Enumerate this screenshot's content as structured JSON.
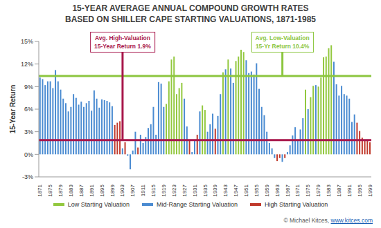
{
  "chart_data": {
    "type": "bar",
    "title": "15-YEAR AVERAGE ANNUAL COMPOUND GROWTH RATES",
    "subtitle": "BASED ON SHILLER CAPE STARTING VALUATIONS, 1871-1985",
    "y_label": "15-Year Return",
    "categories": [
      "1871",
      null,
      null,
      null,
      "1875",
      null,
      null,
      null,
      "1879",
      null,
      null,
      null,
      "1883",
      null,
      null,
      null,
      "1887",
      null,
      null,
      null,
      "1891",
      null,
      null,
      null,
      "1895",
      null,
      null,
      null,
      "1899",
      null,
      null,
      null,
      "1903",
      null,
      null,
      null,
      "1907",
      null,
      null,
      null,
      "1911",
      null,
      null,
      null,
      "1915",
      null,
      null,
      null,
      "1919",
      null,
      null,
      null,
      "1923",
      null,
      null,
      null,
      "1927",
      null,
      null,
      null,
      "1931",
      null,
      null,
      null,
      "1935",
      null,
      null,
      null,
      "1939",
      null,
      null,
      null,
      "1943",
      null,
      null,
      null,
      "1947",
      null,
      null,
      null,
      "1951",
      null,
      null,
      null,
      "1955",
      null,
      null,
      null,
      "1959",
      null,
      null,
      null,
      "1963",
      null,
      null,
      null,
      "1967",
      null,
      null,
      null,
      "1971",
      null,
      null,
      null,
      "1975",
      null,
      null,
      null,
      "1979",
      null,
      null,
      null,
      "1983",
      null,
      null,
      null,
      "1987",
      null,
      null,
      null,
      "1991",
      null,
      null,
      null,
      "1995",
      null,
      null,
      null,
      "1999"
    ],
    "series": [
      {
        "name": "Low Starting Valuation",
        "color": "#92c83e",
        "values": [
          null,
          null,
          null,
          null,
          null,
          null,
          null,
          null,
          null,
          null,
          null,
          null,
          null,
          null,
          null,
          null,
          null,
          null,
          null,
          null,
          null,
          null,
          null,
          null,
          null,
          null,
          null,
          null,
          null,
          null,
          null,
          null,
          null,
          null,
          null,
          null,
          null,
          null,
          null,
          null,
          null,
          null,
          null,
          null,
          null,
          null,
          null,
          null,
          null,
          6.7,
          9.7,
          12.6,
          13.0,
          8.0,
          8.8,
          9.5,
          null,
          null,
          null,
          null,
          null,
          null,
          null,
          6.5,
          5.9,
          null,
          null,
          null,
          null,
          null,
          null,
          10.9,
          null,
          12.6,
          null,
          null,
          12.4,
          13.0,
          13.9,
          13.6,
          null,
          null,
          null,
          null,
          null,
          null,
          null,
          null,
          null,
          null,
          null,
          null,
          null,
          null,
          null,
          null,
          null,
          null,
          null,
          null,
          null,
          null,
          null,
          8.6,
          null,
          7.6,
          9.1,
          null,
          9.0,
          10.2,
          12.9,
          13.0,
          14.1,
          14.5,
          null,
          null,
          null,
          null,
          null,
          null,
          null,
          null,
          null,
          null,
          null,
          null,
          null,
          null,
          null
        ]
      },
      {
        "name": "Mid-Range Starting Valuation",
        "color": "#4a8bd1",
        "values": [
          10.2,
          10.0,
          9.2,
          9.7,
          9.7,
          8.8,
          11.2,
          9.7,
          8.6,
          7.4,
          6.8,
          5.7,
          6.3,
          8.0,
          7.5,
          6.6,
          7.0,
          6.3,
          6.8,
          7.1,
          5.8,
          8.5,
          7.4,
          6.2,
          7.3,
          7.2,
          7.1,
          6.9,
          6.4,
          null,
          null,
          null,
          0.8,
          null,
          -0.2,
          -2.0,
          0.5,
          3.0,
          null,
          2.6,
          1.5,
          2.3,
          3.5,
          4.0,
          6.3,
          2.6,
          9.6,
          9.4,
          6.3,
          null,
          null,
          null,
          null,
          null,
          null,
          null,
          7.4,
          3.7,
          null,
          0.3,
          1.8,
          null,
          5.7,
          null,
          null,
          3.0,
          4.0,
          5.4,
          null,
          5.1,
          8.0,
          null,
          11.3,
          null,
          11.4,
          9.5,
          null,
          null,
          null,
          null,
          12.5,
          10.8,
          11.0,
          10.6,
          12.1,
          8.7,
          6.3,
          5.2,
          3.0,
          1.5,
          0.8,
          -0.5,
          null,
          null,
          -1.0,
          null,
          0.3,
          1.2,
          2.5,
          3.6,
          1.8,
          3.3,
          4.8,
          null,
          6.0,
          null,
          null,
          9.2,
          null,
          null,
          null,
          null,
          null,
          null,
          12.3,
          9.3,
          7.8,
          9.1,
          8.0,
          7.8,
          7.4,
          4.3,
          5.3,
          null,
          null,
          null,
          null,
          null,
          null
        ]
      },
      {
        "name": "High Starting Valuation",
        "color": "#c0392b",
        "values": [
          null,
          null,
          null,
          null,
          null,
          null,
          null,
          null,
          null,
          null,
          null,
          null,
          null,
          null,
          null,
          null,
          null,
          null,
          null,
          null,
          null,
          null,
          null,
          null,
          null,
          null,
          null,
          null,
          null,
          3.9,
          4.2,
          4.4,
          null,
          1.6,
          null,
          null,
          null,
          null,
          0.9,
          null,
          null,
          null,
          null,
          null,
          null,
          null,
          null,
          null,
          null,
          null,
          null,
          null,
          null,
          null,
          null,
          null,
          null,
          null,
          1.8,
          null,
          null,
          2.6,
          null,
          null,
          null,
          null,
          null,
          null,
          3.4,
          null,
          null,
          null,
          null,
          null,
          null,
          null,
          null,
          null,
          null,
          null,
          null,
          null,
          null,
          null,
          null,
          null,
          null,
          null,
          null,
          null,
          null,
          null,
          -0.9,
          -0.5,
          null,
          -0.5,
          null,
          null,
          null,
          null,
          null,
          null,
          null,
          null,
          null,
          null,
          null,
          null,
          null,
          null,
          null,
          null,
          null,
          null,
          null,
          null,
          null,
          null,
          null,
          null,
          null,
          null,
          null,
          4.2,
          3.1,
          2.2,
          1.8,
          1.8,
          1.6
        ]
      }
    ],
    "ylim": [
      -3,
      15
    ],
    "yticks": [
      {
        "value": -3,
        "label": "-3%"
      },
      {
        "value": 0,
        "label": "0%"
      },
      {
        "value": 3,
        "label": "3%"
      },
      {
        "value": 6,
        "label": "6%"
      },
      {
        "value": 9,
        "label": "9%"
      },
      {
        "value": 12,
        "label": "12%"
      },
      {
        "value": 15,
        "label": "15%"
      }
    ],
    "grid": false,
    "legend": "bottom",
    "reference_lines": [
      {
        "value": 10.4,
        "color": "#8cc63f",
        "label": [
          "Avg. Low-Valuation",
          "15-Yr Return 10.4%"
        ]
      },
      {
        "value": 1.9,
        "color": "#a8174b",
        "label": [
          "Avg. High-Valuation",
          "15-Year Return 1.9%"
        ]
      }
    ],
    "credit": "© Michael Kitces, ",
    "credit_link": "www.kitces.com"
  }
}
